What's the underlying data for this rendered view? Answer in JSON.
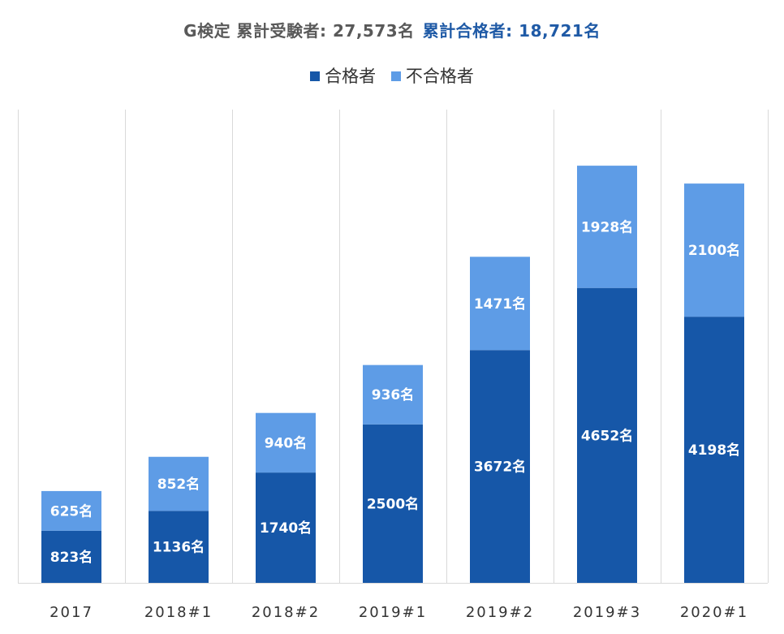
{
  "colors": {
    "passed": "#1657a8",
    "failed": "#5e9ce6",
    "title_main": "#595959",
    "title_accent": "#1f5aa6"
  },
  "chart_data": {
    "type": "bar",
    "stacked": true,
    "title_parts": [
      "G検定 累計受験者: 27,573名",
      "累計合格者: 18,721名"
    ],
    "categories": [
      "2017",
      "2018#1",
      "2018#2",
      "2019#1",
      "2019#2",
      "2019#3",
      "2020#1"
    ],
    "series": [
      {
        "name": "合格者",
        "values": [
          823,
          1136,
          1740,
          2500,
          3672,
          4652,
          4198
        ],
        "labels": [
          "823名",
          "1136名",
          "1740名",
          "2500名",
          "3672名",
          "4652名",
          "4198名"
        ]
      },
      {
        "name": "不合格者",
        "values": [
          625,
          852,
          940,
          936,
          1471,
          1928,
          2100
        ],
        "labels": [
          "625名",
          "852名",
          "940名",
          "936名",
          "1471名",
          "1928名",
          "2100名"
        ]
      }
    ],
    "ylim": [
      0,
      7000
    ],
    "grid": "vertical-separators",
    "legend_position": "top-center"
  }
}
